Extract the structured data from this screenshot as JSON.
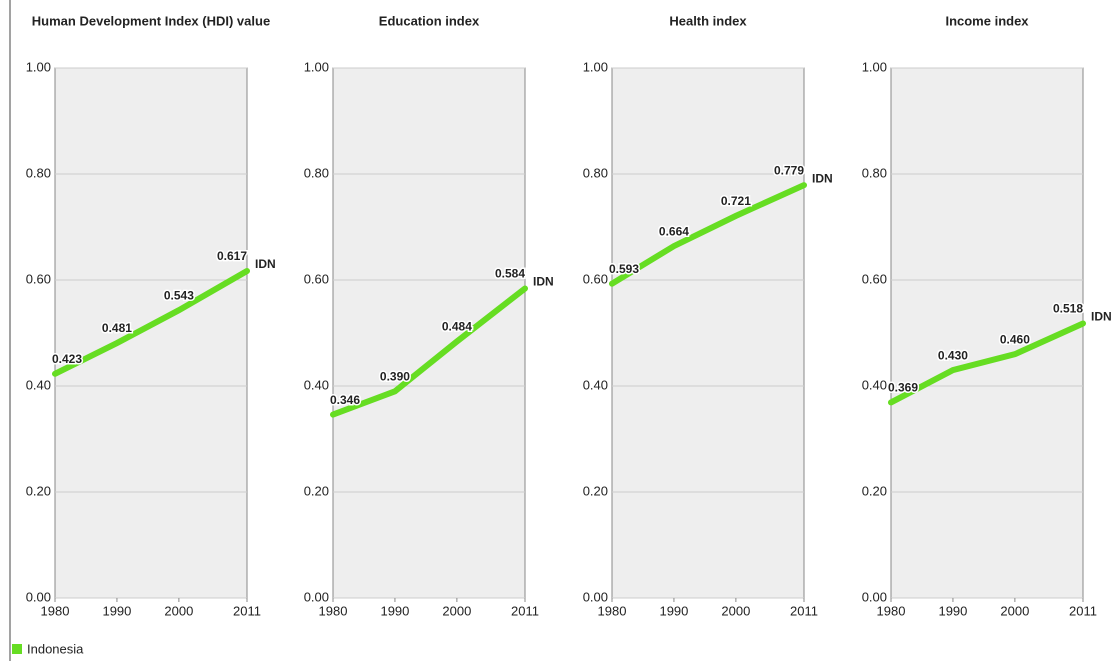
{
  "legend": {
    "label": "Indonesia",
    "color": "#66dd22"
  },
  "chart_data": [
    {
      "type": "line",
      "title": "Human Development Index (HDI) value",
      "x": [
        1980,
        1990,
        2000,
        2011
      ],
      "xlim": [
        1980,
        2011
      ],
      "xticks": [
        1980,
        1990,
        2000,
        2011
      ],
      "ylim": [
        0,
        1
      ],
      "yticks": [
        {
          "value": 0,
          "label": "0.00"
        },
        {
          "value": 0.2,
          "label": "0.20"
        },
        {
          "value": 0.4,
          "label": "0.40"
        },
        {
          "value": 0.6,
          "label": "0.60"
        },
        {
          "value": 0.8,
          "label": "0.80"
        },
        {
          "value": 1,
          "label": "1.00"
        }
      ],
      "grid": true,
      "series": [
        {
          "name": "IDN",
          "color": "#66dd22",
          "values": [
            0.423,
            0.481,
            0.543,
            0.617
          ],
          "value_labels": [
            "0.423",
            "0.481",
            "0.543",
            "0.617"
          ]
        }
      ]
    },
    {
      "type": "line",
      "title": "Education index",
      "x": [
        1980,
        1990,
        2000,
        2011
      ],
      "xlim": [
        1980,
        2011
      ],
      "xticks": [
        1980,
        1990,
        2000,
        2011
      ],
      "ylim": [
        0,
        1
      ],
      "yticks": [
        {
          "value": 0,
          "label": "0.00"
        },
        {
          "value": 0.2,
          "label": "0.20"
        },
        {
          "value": 0.4,
          "label": "0.40"
        },
        {
          "value": 0.6,
          "label": "0.60"
        },
        {
          "value": 0.8,
          "label": "0.80"
        },
        {
          "value": 1,
          "label": "1.00"
        }
      ],
      "grid": true,
      "series": [
        {
          "name": "IDN",
          "color": "#66dd22",
          "values": [
            0.346,
            0.39,
            0.484,
            0.584
          ],
          "value_labels": [
            "0.346",
            "0.390",
            "0.484",
            "0.584"
          ]
        }
      ]
    },
    {
      "type": "line",
      "title": "Health index",
      "x": [
        1980,
        1990,
        2000,
        2011
      ],
      "xlim": [
        1980,
        2011
      ],
      "xticks": [
        1980,
        1990,
        2000,
        2011
      ],
      "ylim": [
        0,
        1
      ],
      "yticks": [
        {
          "value": 0,
          "label": "0.00"
        },
        {
          "value": 0.2,
          "label": "0.20"
        },
        {
          "value": 0.4,
          "label": "0.40"
        },
        {
          "value": 0.6,
          "label": "0.60"
        },
        {
          "value": 0.8,
          "label": "0.80"
        },
        {
          "value": 1,
          "label": "1.00"
        }
      ],
      "grid": true,
      "series": [
        {
          "name": "IDN",
          "color": "#66dd22",
          "values": [
            0.593,
            0.664,
            0.721,
            0.779
          ],
          "value_labels": [
            "0.593",
            "0.664",
            "0.721",
            "0.779"
          ]
        }
      ]
    },
    {
      "type": "line",
      "title": "Income index",
      "x": [
        1980,
        1990,
        2000,
        2011
      ],
      "xlim": [
        1980,
        2011
      ],
      "xticks": [
        1980,
        1990,
        2000,
        2011
      ],
      "ylim": [
        0,
        1
      ],
      "yticks": [
        {
          "value": 0,
          "label": "0.00"
        },
        {
          "value": 0.2,
          "label": "0.20"
        },
        {
          "value": 0.4,
          "label": "0.40"
        },
        {
          "value": 0.6,
          "label": "0.60"
        },
        {
          "value": 0.8,
          "label": "0.80"
        },
        {
          "value": 1,
          "label": "1.00"
        }
      ],
      "grid": true,
      "series": [
        {
          "name": "IDN",
          "color": "#66dd22",
          "values": [
            0.369,
            0.43,
            0.46,
            0.518
          ],
          "value_labels": [
            "0.369",
            "0.430",
            "0.460",
            "0.518"
          ]
        }
      ]
    }
  ]
}
